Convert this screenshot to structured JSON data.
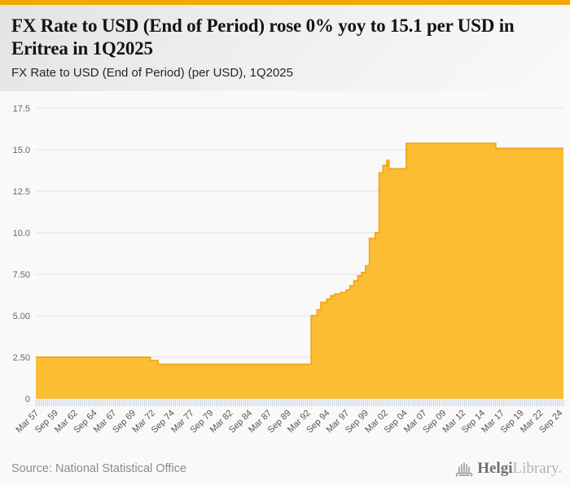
{
  "theme": {
    "accent_bar_color": "#f2a702",
    "area_fill_color": "#fbbe33",
    "area_line_color": "#f4a71f",
    "grid_color": "#e4e4e4",
    "minor_tick_color": "#c7d0e2",
    "plot_background": "#f9f9f9"
  },
  "header": {
    "title": "FX Rate to USD (End of Period) rose 0% yoy to 15.1 per USD in Eritrea in 1Q2025",
    "subtitle": "FX Rate to USD (End of Period) (per USD), 1Q2025"
  },
  "footer": {
    "source": "Source: National Statistical Office",
    "brand_primary": "Helgi",
    "brand_secondary": "Library."
  },
  "chart_data": {
    "type": "area",
    "title": "FX Rate to USD (End of Period) rose 0% yoy to 15.1 per USD in Eritrea in 1Q2025",
    "subtitle": "FX Rate to USD (End of Period) (per USD), 1Q2025",
    "ylabel": "",
    "xlabel": "",
    "ylim": [
      0,
      17.5
    ],
    "x_range": [
      1957.25,
      2025.25
    ],
    "grid": true,
    "legend": false,
    "interpolation": "step-after",
    "y_ticks": [
      {
        "v": 0,
        "label": "0"
      },
      {
        "v": 2.5,
        "label": "2.50"
      },
      {
        "v": 5,
        "label": "5.00"
      },
      {
        "v": 7.5,
        "label": "7.50"
      },
      {
        "v": 10,
        "label": "10.0"
      },
      {
        "v": 12.5,
        "label": "12.5"
      },
      {
        "v": 15,
        "label": "15.0"
      },
      {
        "v": 17.5,
        "label": "17.5"
      }
    ],
    "x_tick_labels": [
      "Mar 57",
      "Sep 59",
      "Mar 62",
      "Sep 64",
      "Mar 67",
      "Sep 69",
      "Mar 72",
      "Sep 74",
      "Mar 77",
      "Sep 79",
      "Mar 82",
      "Sep 84",
      "Mar 87",
      "Sep 89",
      "Mar 92",
      "Sep 94",
      "Mar 97",
      "Sep 99",
      "Mar 02",
      "Sep 04",
      "Mar 07",
      "Sep 09",
      "Mar 12",
      "Sep 14",
      "Mar 17",
      "Sep 19",
      "Mar 22",
      "Sep 24"
    ],
    "x_tick_step_years": 2.5,
    "minor_tick_step_years": 0.25,
    "series": [
      {
        "name": "FX Rate to USD (End of Period), per USD",
        "points": [
          {
            "x": 1957.25,
            "v": 2.5
          },
          {
            "x": 1972.0,
            "v": 2.3
          },
          {
            "x": 1973.0,
            "v": 2.07
          },
          {
            "x": 1992.75,
            "v": 5.0
          },
          {
            "x": 1993.5,
            "v": 5.35
          },
          {
            "x": 1994.0,
            "v": 5.8
          },
          {
            "x": 1994.75,
            "v": 6.0
          },
          {
            "x": 1995.25,
            "v": 6.2
          },
          {
            "x": 1995.75,
            "v": 6.3
          },
          {
            "x": 1996.5,
            "v": 6.4
          },
          {
            "x": 1997.25,
            "v": 6.55
          },
          {
            "x": 1997.75,
            "v": 6.8
          },
          {
            "x": 1998.25,
            "v": 7.1
          },
          {
            "x": 1998.75,
            "v": 7.4
          },
          {
            "x": 1999.25,
            "v": 7.6
          },
          {
            "x": 1999.75,
            "v": 8.0
          },
          {
            "x": 2000.25,
            "v": 9.65
          },
          {
            "x": 2001.0,
            "v": 10.0
          },
          {
            "x": 2001.5,
            "v": 13.6
          },
          {
            "x": 2002.0,
            "v": 14.05
          },
          {
            "x": 2002.5,
            "v": 14.35
          },
          {
            "x": 2002.75,
            "v": 13.85
          },
          {
            "x": 2005.0,
            "v": 15.38
          },
          {
            "x": 2016.5,
            "v": 15.08
          }
        ]
      }
    ]
  }
}
